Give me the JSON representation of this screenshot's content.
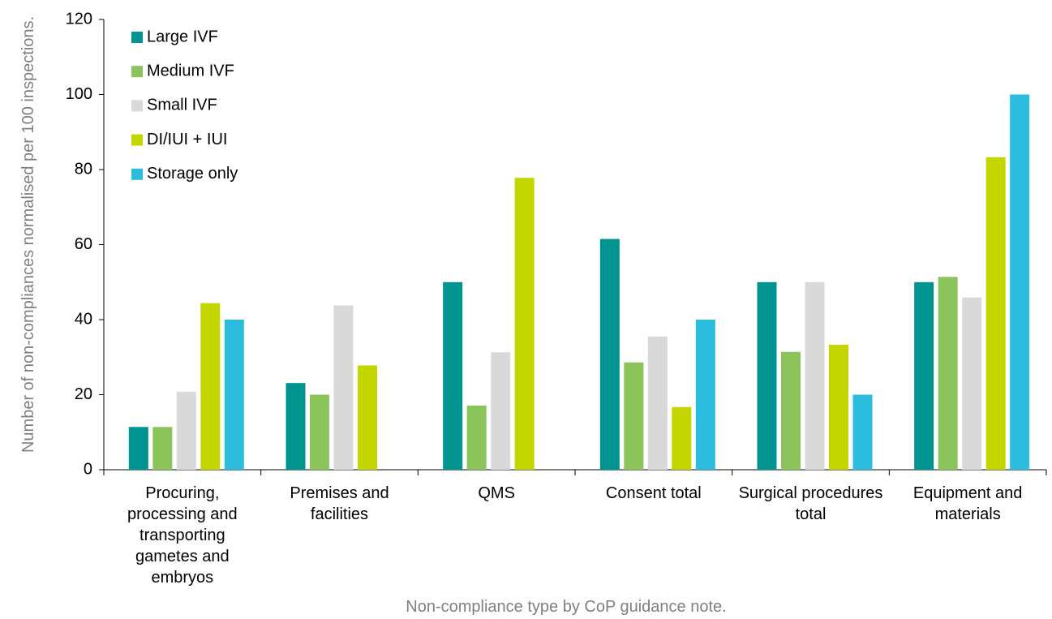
{
  "chart_data": {
    "type": "bar",
    "x_label": "Non-compliance type by CoP guidance note.",
    "y_label": "Number of non-compliances normalised per 100 inspections.",
    "categories": [
      "Procuring, processing and transporting gametes and embryos",
      "Premises and facilities",
      "QMS",
      "Consent total",
      "Surgical procedures total",
      "Equipment and materials"
    ],
    "series": [
      {
        "name": "Large IVF",
        "color": "#009490",
        "values": [
          11.4,
          23.1,
          50,
          61.5,
          50,
          50
        ]
      },
      {
        "name": "Medium IVF",
        "color": "#8bc45a",
        "values": [
          11.4,
          20,
          17.1,
          28.6,
          31.4,
          51.4
        ]
      },
      {
        "name": "Small IVF",
        "color": "#d9d9d9",
        "values": [
          20.8,
          43.8,
          31.3,
          35.5,
          50,
          45.9
        ]
      },
      {
        "name": "DI/IUI + IUI",
        "color": "#c4d600",
        "values": [
          44.4,
          27.8,
          77.8,
          16.7,
          33.3,
          83.3
        ]
      },
      {
        "name": "Storage only",
        "color": "#2bbcde",
        "values": [
          40,
          0,
          0,
          40,
          20,
          100
        ]
      }
    ],
    "ylim": [
      0,
      120
    ],
    "yticks": [
      0,
      20,
      40,
      60,
      80,
      100,
      120
    ],
    "legend": "top-left"
  }
}
